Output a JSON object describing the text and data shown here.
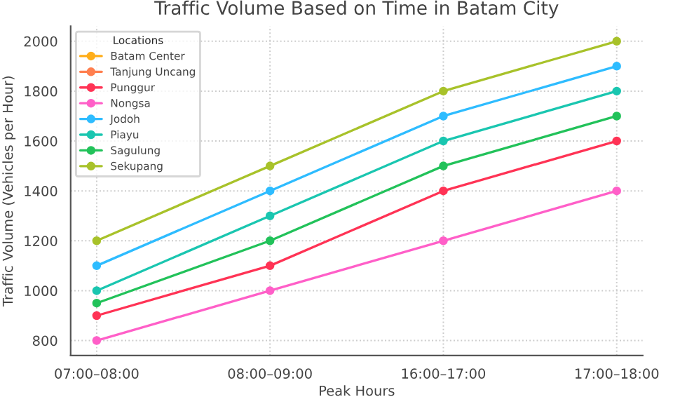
{
  "chart_data": {
    "type": "line",
    "title": "Traffic Volume Based on Time in Batam City",
    "xlabel": "Peak Hours",
    "ylabel": "Traffic Volume (Vehicles per Hour)",
    "legend_title": "Locations",
    "categories": [
      "07:00–08:00",
      "08:00–09:00",
      "16:00–17:00",
      "17:00–18:00"
    ],
    "series": [
      {
        "name": "Batam Center",
        "color": "#ffae1a",
        "values": [
          null,
          null,
          null,
          null
        ]
      },
      {
        "name": "Tanjung Uncang",
        "color": "#ff7f4f",
        "values": [
          null,
          null,
          null,
          null
        ]
      },
      {
        "name": "Punggur",
        "color": "#ff3355",
        "values": [
          900,
          1100,
          1400,
          1600
        ]
      },
      {
        "name": "Nongsa",
        "color": "#ff5fc8",
        "values": [
          800,
          1000,
          1200,
          1400
        ]
      },
      {
        "name": "Jodoh",
        "color": "#2ebcff",
        "values": [
          1100,
          1400,
          1700,
          1900
        ]
      },
      {
        "name": "Piayu",
        "color": "#1ac6b0",
        "values": [
          1000,
          1300,
          1600,
          1800
        ]
      },
      {
        "name": "Sagulung",
        "color": "#22c25a",
        "values": [
          950,
          1200,
          1500,
          1700
        ]
      },
      {
        "name": "Sekupang",
        "color": "#a8c22a",
        "values": [
          1200,
          1500,
          1800,
          2000
        ]
      }
    ],
    "ylim": [
      740,
      2060
    ],
    "yticks": [
      800,
      1000,
      1200,
      1400,
      1600,
      1800,
      2000
    ],
    "grid": true,
    "legend": "top left",
    "marker": "circle",
    "line_style": "solid"
  }
}
